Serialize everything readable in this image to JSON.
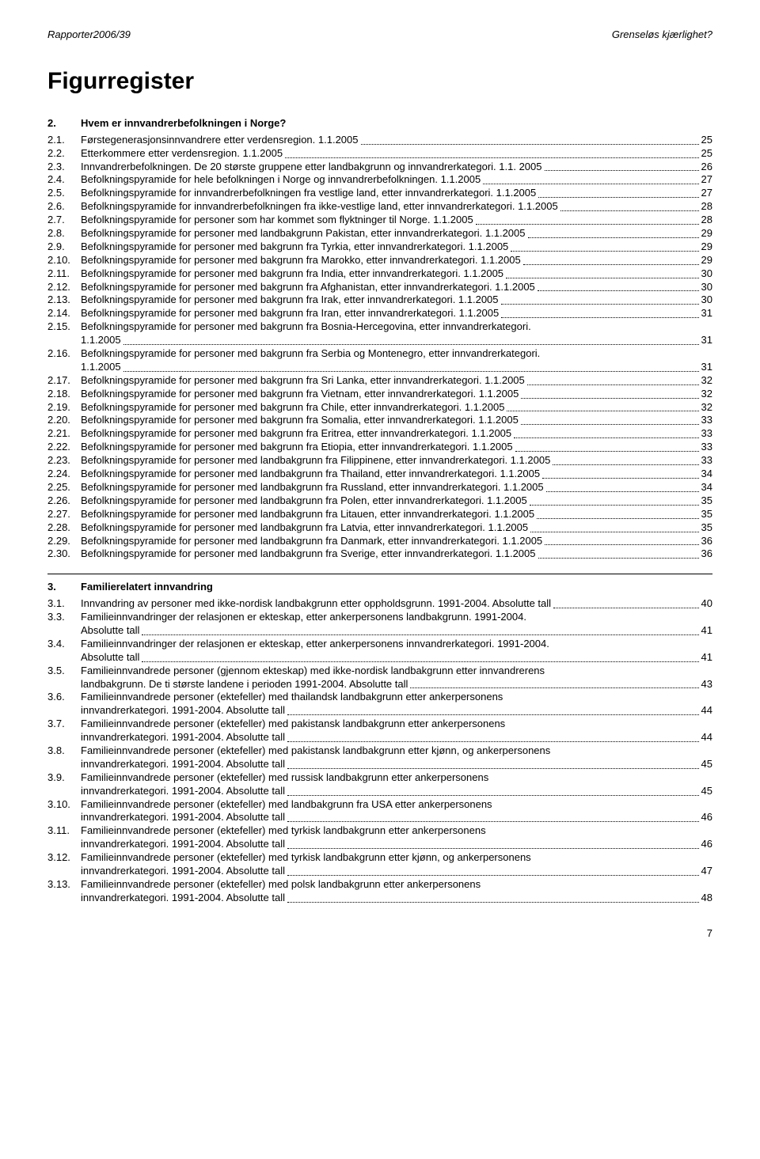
{
  "header": {
    "left": "Rapporter2006/39",
    "right": "Grenseløs kjærlighet?"
  },
  "title": "Figurregister",
  "sections": [
    {
      "num": "2.",
      "title": "Hvem er innvandrerbefolkningen i Norge?",
      "entries": [
        {
          "num": "2.1.",
          "text": "Førstegenerasjonsinnvandrere etter verdensregion. 1.1.2005",
          "page": "25"
        },
        {
          "num": "2.2.",
          "text": "Etterkommere etter verdensregion. 1.1.2005",
          "page": "25"
        },
        {
          "num": "2.3.",
          "text": "Innvandrerbefolkningen. De 20 største gruppene etter landbakgrunn og innvandrerkategori. 1.1. 2005",
          "page": "26"
        },
        {
          "num": "2.4.",
          "text": "Befolkningspyramide for hele befolkningen i Norge og innvandrerbefolkningen. 1.1.2005",
          "page": "27"
        },
        {
          "num": "2.5.",
          "text": "Befolkningspyramide for innvandrerbefolkningen fra vestlige land, etter innvandrerkategori. 1.1.2005",
          "page": "27"
        },
        {
          "num": "2.6.",
          "text": "Befolkningspyramide for innvandrerbefolkningen fra ikke-vestlige land, etter innvandrerkategori. 1.1.2005",
          "page": "28"
        },
        {
          "num": "2.7.",
          "text": "Befolkningspyramide for personer som har kommet som flyktninger til Norge. 1.1.2005",
          "page": "28"
        },
        {
          "num": "2.8.",
          "text": "Befolkningspyramide for personer med landbakgrunn Pakistan, etter innvandrerkategori. 1.1.2005",
          "page": "29"
        },
        {
          "num": "2.9.",
          "text": "Befolkningspyramide for personer med bakgrunn fra Tyrkia, etter innvandrerkategori. 1.1.2005",
          "page": "29"
        },
        {
          "num": "2.10.",
          "text": "Befolkningspyramide for personer med bakgrunn fra Marokko, etter innvandrerkategori. 1.1.2005",
          "page": "29"
        },
        {
          "num": "2.11.",
          "text": "Befolkningspyramide for personer med bakgrunn fra India, etter innvandrerkategori. 1.1.2005",
          "page": "30"
        },
        {
          "num": "2.12.",
          "text": "Befolkningspyramide for personer med bakgrunn fra Afghanistan, etter innvandrerkategori. 1.1.2005",
          "page": "30"
        },
        {
          "num": "2.13.",
          "text": "Befolkningspyramide for personer med bakgrunn fra Irak, etter innvandrerkategori. 1.1.2005",
          "page": "30"
        },
        {
          "num": "2.14.",
          "text": "Befolkningspyramide for personer med bakgrunn fra Iran, etter innvandrerkategori. 1.1.2005",
          "page": "31"
        },
        {
          "num": "2.15.",
          "text": "Befolkningspyramide for personer med bakgrunn fra Bosnia-Hercegovina, etter innvandrerkategori.",
          "cont": "1.1.2005",
          "page": "31"
        },
        {
          "num": "2.16.",
          "text": "Befolkningspyramide for personer med bakgrunn fra Serbia og Montenegro, etter innvandrerkategori.",
          "cont": "1.1.2005",
          "page": "31"
        },
        {
          "num": "2.17.",
          "text": "Befolkningspyramide for personer med bakgrunn fra Sri Lanka, etter innvandrerkategori. 1.1.2005",
          "page": "32"
        },
        {
          "num": "2.18.",
          "text": "Befolkningspyramide for personer med bakgrunn fra Vietnam, etter innvandrerkategori. 1.1.2005",
          "page": "32"
        },
        {
          "num": "2.19.",
          "text": "Befolkningspyramide for personer med bakgrunn fra Chile, etter innvandrerkategori. 1.1.2005",
          "page": "32"
        },
        {
          "num": "2.20.",
          "text": "Befolkningspyramide for personer med bakgrunn fra Somalia, etter innvandrerkategori. 1.1.2005",
          "page": "33"
        },
        {
          "num": "2.21.",
          "text": "Befolkningspyramide for personer med bakgrunn fra Eritrea, etter innvandrerkategori. 1.1.2005",
          "page": "33"
        },
        {
          "num": "2.22.",
          "text": "Befolkningspyramide for personer med bakgrunn fra Etiopia, etter innvandrerkategori. 1.1.2005",
          "page": "33"
        },
        {
          "num": "2.23.",
          "text": "Befolkningspyramide for personer med landbakgrunn fra Filippinene, etter innvandrerkategori. 1.1.2005",
          "page": "33"
        },
        {
          "num": "2.24.",
          "text": "Befolkningspyramide for personer med landbakgrunn fra Thailand, etter innvandrerkategori. 1.1.2005",
          "page": "34"
        },
        {
          "num": "2.25.",
          "text": "Befolkningspyramide for personer med landbakgrunn fra Russland, etter innvandrerkategori. 1.1.2005",
          "page": "34"
        },
        {
          "num": "2.26.",
          "text": "Befolkningspyramide for personer med landbakgrunn fra Polen, etter innvandrerkategori. 1.1.2005",
          "page": "35"
        },
        {
          "num": "2.27.",
          "text": "Befolkningspyramide for personer med landbakgrunn fra Litauen, etter innvandrerkategori. 1.1.2005",
          "page": "35"
        },
        {
          "num": "2.28.",
          "text": "Befolkningspyramide for personer med landbakgrunn fra Latvia, etter innvandrerkategori. 1.1.2005",
          "page": "35"
        },
        {
          "num": "2.29.",
          "text": "Befolkningspyramide for personer med landbakgrunn fra Danmark, etter innvandrerkategori. 1.1.2005",
          "page": "36"
        },
        {
          "num": "2.30.",
          "text": "Befolkningspyramide for personer med landbakgrunn fra Sverige, etter innvandrerkategori. 1.1.2005",
          "page": "36"
        }
      ]
    },
    {
      "num": "3.",
      "title": "Familierelatert innvandring",
      "entries": [
        {
          "num": "3.1.",
          "text": "Innvandring av personer med ikke-nordisk landbakgrunn etter oppholdsgrunn. 1991-2004. Absolutte tall",
          "page": "40"
        },
        {
          "num": "3.3.",
          "text": "Familieinnvandringer der relasjonen er ekteskap, etter ankerpersonens landbakgrunn. 1991-2004.",
          "cont": "Absolutte tall",
          "page": "41"
        },
        {
          "num": "3.4.",
          "text": "Familieinnvandringer der relasjonen er ekteskap, etter ankerpersonens innvandrerkategori. 1991-2004.",
          "cont": "Absolutte tall",
          "page": "41"
        },
        {
          "num": "3.5.",
          "text": "Familieinnvandrede personer (gjennom ekteskap) med ikke-nordisk landbakgrunn etter innvandrerens",
          "cont": "landbakgrunn. De ti største landene i perioden 1991-2004. Absolutte tall",
          "page": "43"
        },
        {
          "num": "3.6.",
          "text": "Familieinnvandrede personer (ektefeller) med thailandsk landbakgrunn etter ankerpersonens",
          "cont": "innvandrerkategori. 1991-2004. Absolutte tall",
          "page": "44"
        },
        {
          "num": "3.7.",
          "text": "Familieinnvandrede personer (ektefeller) med pakistansk landbakgrunn etter ankerpersonens",
          "cont": "innvandrerkategori. 1991-2004. Absolutte tall",
          "page": "44"
        },
        {
          "num": "3.8.",
          "text": "Familieinnvandrede personer (ektefeller) med pakistansk landbakgrunn etter kjønn, og ankerpersonens",
          "cont": "innvandrerkategori. 1991-2004. Absolutte tall",
          "page": "45"
        },
        {
          "num": "3.9.",
          "text": "Familieinnvandrede personer (ektefeller) med russisk landbakgrunn etter ankerpersonens",
          "cont": "innvandrerkategori. 1991-2004. Absolutte tall",
          "page": "45"
        },
        {
          "num": "3.10.",
          "text": "Familieinnvandrede personer (ektefeller) med landbakgrunn fra USA etter ankerpersonens",
          "cont": "innvandrerkategori. 1991-2004. Absolutte tall",
          "page": "46"
        },
        {
          "num": "3.11.",
          "text": "Familieinnvandrede personer (ektefeller) med tyrkisk landbakgrunn etter ankerpersonens",
          "cont": "innvandrerkategori. 1991-2004. Absolutte tall",
          "page": "46"
        },
        {
          "num": "3.12.",
          "text": "Familieinnvandrede personer (ektefeller) med tyrkisk landbakgrunn etter kjønn, og ankerpersonens",
          "cont": "innvandrerkategori. 1991-2004. Absolutte tall",
          "page": "47"
        },
        {
          "num": "3.13.",
          "text": "Familieinnvandrede personer (ektefeller) med polsk landbakgrunn etter ankerpersonens",
          "cont": "innvandrerkategori. 1991-2004. Absolutte tall",
          "page": "48"
        }
      ]
    }
  ],
  "pageNumber": "7"
}
